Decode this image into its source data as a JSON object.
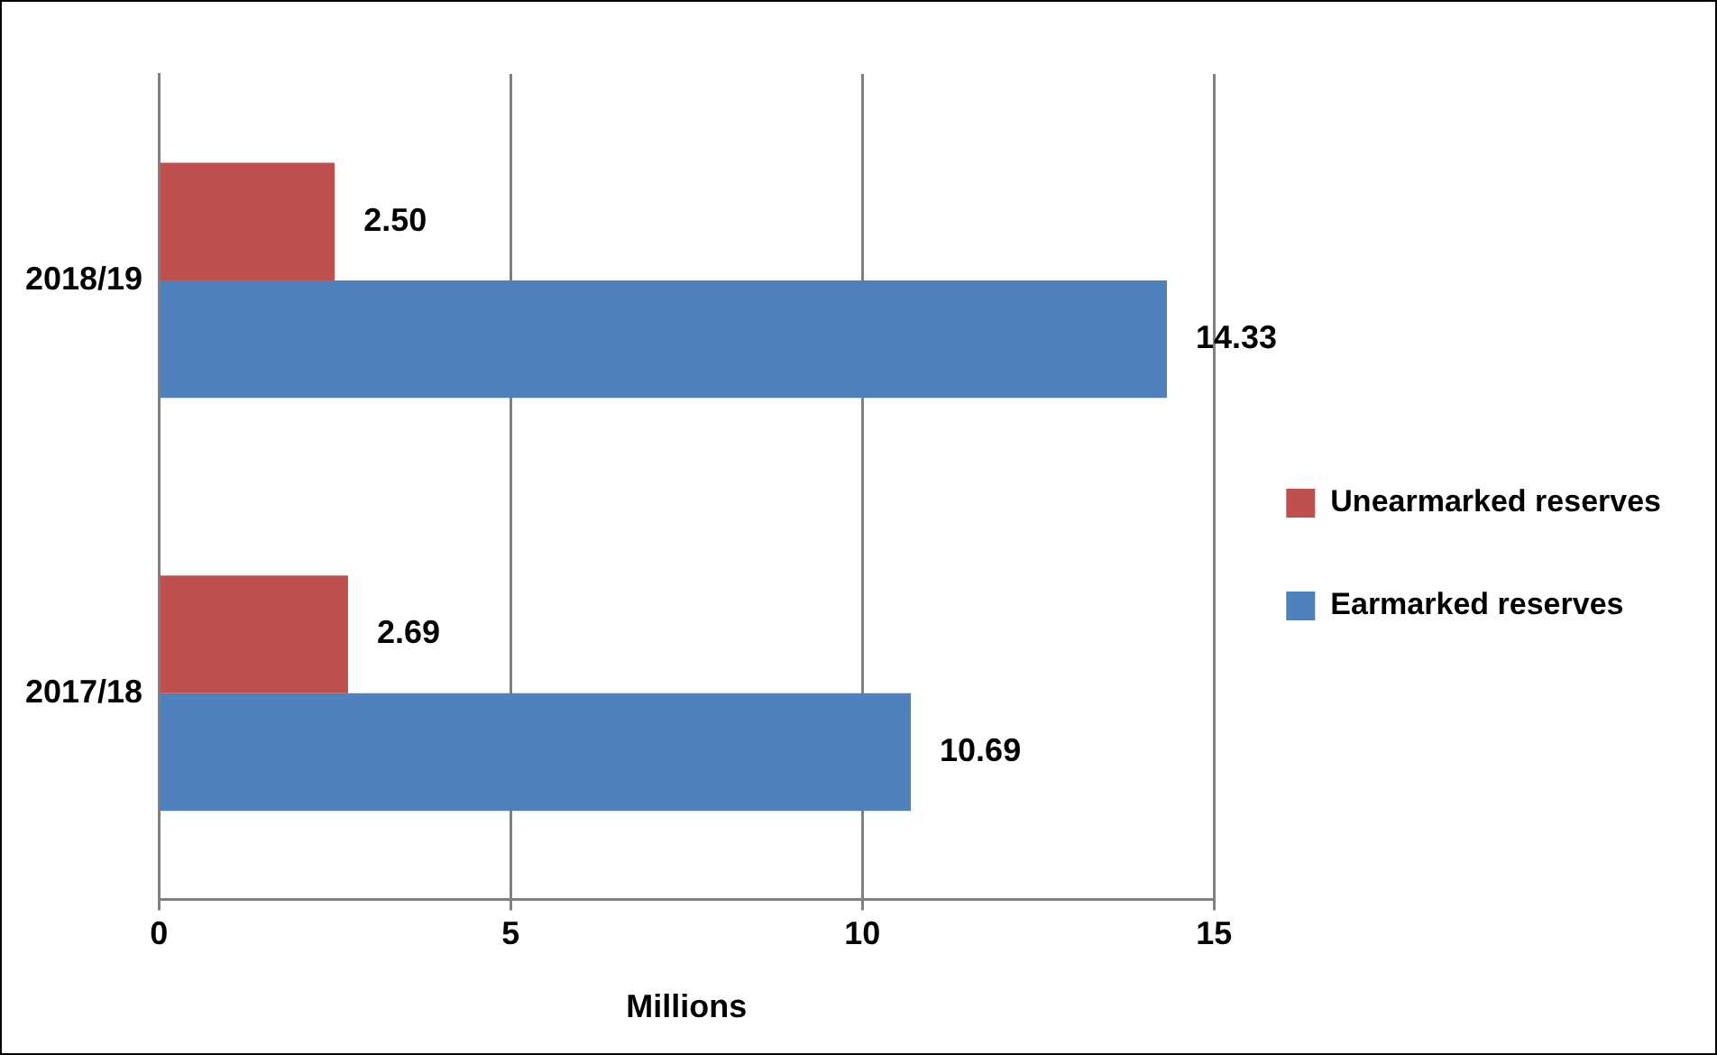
{
  "chart_data": {
    "type": "bar",
    "orientation": "horizontal",
    "xlabel": "Millions",
    "categories": [
      "2018/19",
      "2017/18"
    ],
    "series": [
      {
        "name": "Unearmarked reserves",
        "color": "#c0504d",
        "values": [
          2.5,
          2.69
        ],
        "value_labels": [
          "2.50",
          "2.69"
        ]
      },
      {
        "name": "Earmarked reserves",
        "color": "#4f81bd",
        "values": [
          14.33,
          10.69
        ],
        "value_labels": [
          "14.33",
          "10.69"
        ]
      }
    ],
    "xlim": [
      0,
      15
    ],
    "xticks": [
      0,
      5,
      10,
      15
    ],
    "grid": "x",
    "legend": "right"
  }
}
